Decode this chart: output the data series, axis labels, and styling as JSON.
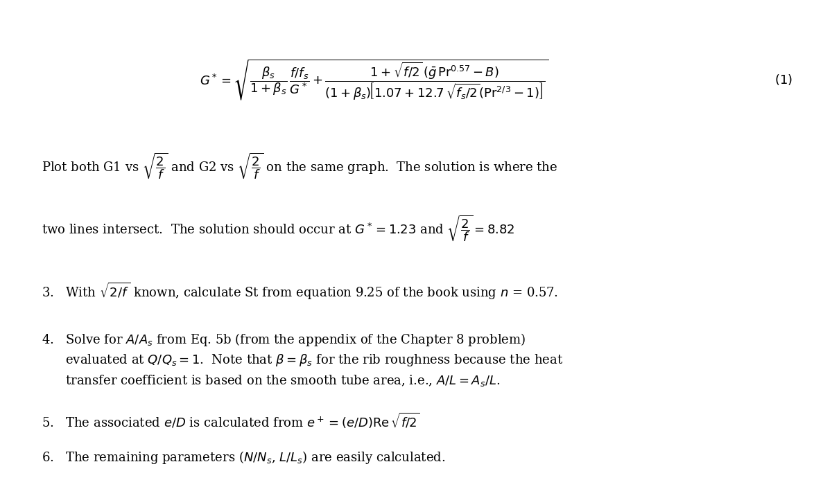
{
  "background_color": "#ffffff",
  "fig_width": 12.0,
  "fig_height": 6.93,
  "dpi": 100,
  "font_size_eq": 13,
  "font_size_text": 13
}
